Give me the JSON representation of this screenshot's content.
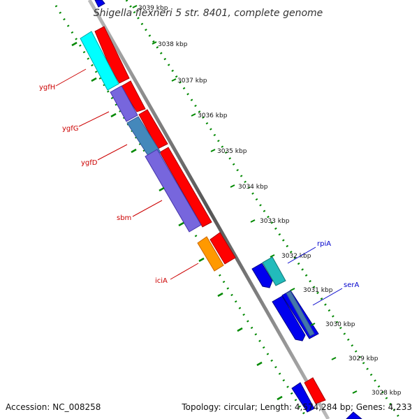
{
  "title": "Shigella flexneri 5 str. 8401, complete genome",
  "footer": {
    "accession": "Accession: NC_008258",
    "summary": "Topology: circular; Length: 4,574,284 bp; Genes: 4,233"
  },
  "kbp_labels": [
    "3039 kbp",
    "3038 kbp",
    "3037 kbp",
    "3036 kbp",
    "3035 kbp",
    "3034 kbp",
    "3033 kbp",
    "3032 kbp",
    "3031 kbp",
    "3030 kbp",
    "3029 kbp",
    "3028 kbp"
  ],
  "gene_labels": {
    "ygfH": "ygfH",
    "ygfG": "ygfG",
    "ygfD": "ygfD",
    "sbm": "sbm",
    "iciA": "iciA",
    "rpiA": "rpiA",
    "serA": "serA"
  },
  "colors": {
    "reverse_strand_label": "#cc0000",
    "forward_strand_label": "#0000cc",
    "red_feature": "#ff0000",
    "blue_feature": "#0000ee",
    "cyan_feature": "#00ffff",
    "purple_feature": "#7766dd",
    "orange_feature": "#ff9900",
    "teal_feature": "#22bbbb",
    "backbone": "#777777",
    "ticks": "#008800"
  }
}
